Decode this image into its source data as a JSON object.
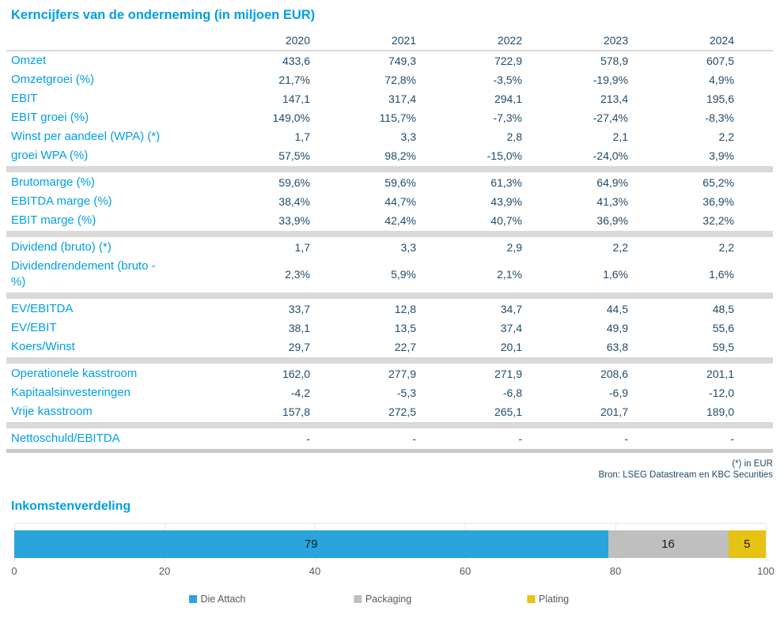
{
  "table": {
    "title": "Kerncijfers van de onderneming (in miljoen EUR)",
    "years": [
      "2020",
      "2021",
      "2022",
      "2023",
      "2024"
    ],
    "sections": [
      {
        "rows": [
          {
            "label": "Omzet",
            "values": [
              "433,6",
              "749,3",
              "722,9",
              "578,9",
              "607,5"
            ]
          },
          {
            "label": "Omzetgroei (%)",
            "values": [
              "21,7%",
              "72,8%",
              "-3,5%",
              "-19,9%",
              "4,9%"
            ]
          },
          {
            "label": "EBIT",
            "values": [
              "147,1",
              "317,4",
              "294,1",
              "213,4",
              "195,6"
            ]
          },
          {
            "label": "EBIT groei (%)",
            "values": [
              "149,0%",
              "115,7%",
              "-7,3%",
              "-27,4%",
              "-8,3%"
            ]
          },
          {
            "label": "Winst per aandeel (WPA) (*)",
            "values": [
              "1,7",
              "3,3",
              "2,8",
              "2,1",
              "2,2"
            ]
          },
          {
            "label": "groei WPA (%)",
            "values": [
              "57,5%",
              "98,2%",
              "-15,0%",
              "-24,0%",
              "3,9%"
            ]
          }
        ]
      },
      {
        "rows": [
          {
            "label": "Brutomarge (%)",
            "values": [
              "59,6%",
              "59,6%",
              "61,3%",
              "64,9%",
              "65,2%"
            ]
          },
          {
            "label": "EBITDA marge (%)",
            "values": [
              "38,4%",
              "44,7%",
              "43,9%",
              "41,3%",
              "36,9%"
            ]
          },
          {
            "label": "EBIT marge (%)",
            "values": [
              "33,9%",
              "42,4%",
              "40,7%",
              "36,9%",
              "32,2%"
            ]
          }
        ]
      },
      {
        "rows": [
          {
            "label": "Dividend (bruto) (*)",
            "values": [
              "1,7",
              "3,3",
              "2,9",
              "2,2",
              "2,2"
            ]
          },
          {
            "label": "Dividendrendement (bruto -\n%)",
            "values": [
              "2,3%",
              "5,9%",
              "2,1%",
              "1,6%",
              "1,6%"
            ]
          }
        ]
      },
      {
        "rows": [
          {
            "label": "EV/EBITDA",
            "values": [
              "33,7",
              "12,8",
              "34,7",
              "44,5",
              "48,5"
            ]
          },
          {
            "label": "EV/EBIT",
            "values": [
              "38,1",
              "13,5",
              "37,4",
              "49,9",
              "55,6"
            ]
          },
          {
            "label": "Koers/Winst",
            "values": [
              "29,7",
              "22,7",
              "20,1",
              "63,8",
              "59,5"
            ]
          }
        ]
      },
      {
        "rows": [
          {
            "label": "Operationele kasstroom",
            "values": [
              "162,0",
              "277,9",
              "271,9",
              "208,6",
              "201,1"
            ]
          },
          {
            "label": "Kapitaalsinvesteringen",
            "values": [
              "-4,2",
              "-5,3",
              "-6,8",
              "-6,9",
              "-12,0"
            ]
          },
          {
            "label": "Vrije kasstroom",
            "values": [
              "157,8",
              "272,5",
              "265,1",
              "201,7",
              "189,0"
            ]
          }
        ]
      },
      {
        "rows": [
          {
            "label": "Nettoschuld/EBITDA",
            "values": [
              "-",
              "-",
              "-",
              "-",
              "-"
            ]
          }
        ]
      }
    ],
    "footnote": "(*) in EUR",
    "source": "Bron: LSEG Datastream en KBC Securities"
  },
  "chart_data": {
    "type": "bar",
    "stacked": true,
    "orientation": "horizontal",
    "title": "Inkomstenverdeling",
    "series": [
      {
        "name": "Die Attach",
        "value": 79,
        "color": "#29A4DC"
      },
      {
        "name": "Packaging",
        "value": 16,
        "color": "#BFBFBF"
      },
      {
        "name": "Plating",
        "value": 5,
        "color": "#E6C213"
      }
    ],
    "xlim": [
      0,
      100
    ],
    "xticks": [
      0,
      20,
      40,
      60,
      80,
      100
    ],
    "grid": true,
    "legend_position": "bottom",
    "legend_item_positions_pct": [
      27,
      49,
      71
    ]
  },
  "colors": {
    "accent_blue": "#009FE3",
    "value_navy": "#234B69",
    "separator_light": "#D9D9D9",
    "separator_dark": "#C8C8C8",
    "axis_text": "#595959",
    "bar_label_text": "#1A1A1A"
  }
}
